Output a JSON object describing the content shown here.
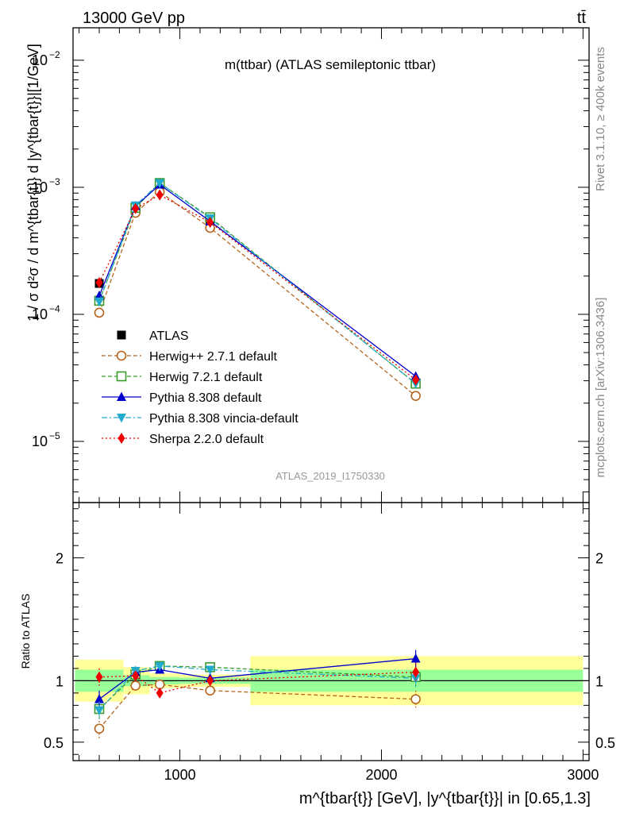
{
  "header": {
    "left": "13000 GeV pp",
    "right": "tt̄"
  },
  "side_labels": {
    "rivet": "Rivet 3.1.10, ≥ 400k events",
    "mcplots": "mcplots.cern.ch [arXiv:1306.3436]"
  },
  "chart_data": {
    "type": "line",
    "title": "m(ttbar) (ATLAS semileptonic ttbar)",
    "analysis_tag": "ATLAS_2019_I1750330",
    "ylabel": "1 / σ d²σ / d m^{tbar{t}} d |y^{tbar{t}}|[1/GeV]",
    "xlabel": "m^{tbar{t}} [GeV], |y^{tbar{t}}| in [0.65,1.3]",
    "ratio_ylabel": "Ratio to ATLAS",
    "x_scale": "linear",
    "y_scale": "log",
    "xlim": [
      470,
      3030
    ],
    "ylim": [
      3.3e-06,
      0.018
    ],
    "ratio_ylim": [
      0.35,
      2.45
    ],
    "x_ticks": [
      {
        "value": 1000,
        "label": "1000"
      },
      {
        "value": 2000,
        "label": "2000"
      },
      {
        "value": 3000,
        "label": "3000"
      }
    ],
    "y_ticks": [
      {
        "value": 0.01,
        "base": "10",
        "exp": "−2"
      },
      {
        "value": 0.001,
        "base": "10",
        "exp": "−3"
      },
      {
        "value": 0.0001,
        "base": "10",
        "exp": "−4"
      },
      {
        "value": 1e-05,
        "base": "10",
        "exp": "−5"
      }
    ],
    "ratio_ticks": [
      {
        "value": 0.5,
        "label": "0.5"
      },
      {
        "value": 1,
        "label": "1"
      },
      {
        "value": 2,
        "label": "2"
      }
    ],
    "bins": [
      {
        "low": 480,
        "high": 720
      },
      {
        "low": 720,
        "high": 850
      },
      {
        "low": 850,
        "high": 1000
      },
      {
        "low": 1000,
        "high": 1350
      },
      {
        "low": 1350,
        "high": 3000
      }
    ],
    "x": [
      600,
      780,
      900,
      1150,
      2170
    ],
    "band_green": [
      0.09,
      0.045,
      0.03,
      0.025,
      0.09
    ],
    "band_yellow": [
      0.17,
      0.11,
      0.06,
      0.05,
      0.2
    ],
    "legend_position": "middle-left",
    "series": [
      {
        "name": "ATLAS",
        "color": "#000000",
        "marker": "square-filled",
        "line": "none",
        "values": [
          0.000175,
          0.00066,
          0.00095,
          0.00053,
          2.85e-05
        ],
        "ratio": [
          1,
          1,
          1,
          1,
          1
        ],
        "ratio_err": [
          0,
          0,
          0,
          0,
          0
        ]
      },
      {
        "name": "Herwig++ 2.7.1 default",
        "color": "#b5651d",
        "marker": "circle-open",
        "line": "dashed",
        "values": [
          0.000103,
          0.00063,
          0.00092,
          0.00048,
          2.28e-05
        ],
        "ratio": [
          0.61,
          0.96,
          0.97,
          0.92,
          0.85
        ],
        "ratio_err": [
          0.09,
          0.04,
          0.03,
          0.02,
          0.07
        ]
      },
      {
        "name": "Herwig 7.2.1 default",
        "color": "#3a9a2a",
        "marker": "square-open",
        "line": "dashed",
        "values": [
          0.000128,
          0.00069,
          0.00108,
          0.00058,
          2.85e-05
        ],
        "ratio": [
          0.77,
          1.05,
          1.12,
          1.11,
          1.03
        ],
        "ratio_err": [
          0.07,
          0.04,
          0.03,
          0.02,
          0.07
        ]
      },
      {
        "name": "Pythia 8.308 default",
        "color": "#0000cc",
        "marker": "triangle-up-filled",
        "line": "solid",
        "values": [
          0.00014,
          0.00071,
          0.00105,
          0.00054,
          3.25e-05
        ],
        "ratio": [
          0.85,
          1.07,
          1.09,
          1.02,
          1.18
        ],
        "ratio_err": [
          0.07,
          0.04,
          0.03,
          0.02,
          0.07
        ]
      },
      {
        "name": "Pythia 8.308 vincia-default",
        "color": "#22aacc",
        "marker": "triangle-down-filled",
        "line": "dashdot",
        "values": [
          0.000126,
          0.00072,
          0.00108,
          0.00057,
          2.85e-05
        ],
        "ratio": [
          0.76,
          1.08,
          1.12,
          1.09,
          1.02
        ],
        "ratio_err": [
          0.07,
          0.04,
          0.03,
          0.02,
          0.07
        ]
      },
      {
        "name": "Sherpa 2.2.0 default",
        "color": "#ee0000",
        "marker": "diamond-filled",
        "line": "dotted",
        "values": [
          0.000178,
          0.00068,
          0.00087,
          0.00053,
          3.05e-05
        ],
        "ratio": [
          1.03,
          1.04,
          0.9,
          1,
          1.07
        ],
        "ratio_err": [
          0.07,
          0.04,
          0.03,
          0.02,
          0.07
        ]
      }
    ]
  }
}
